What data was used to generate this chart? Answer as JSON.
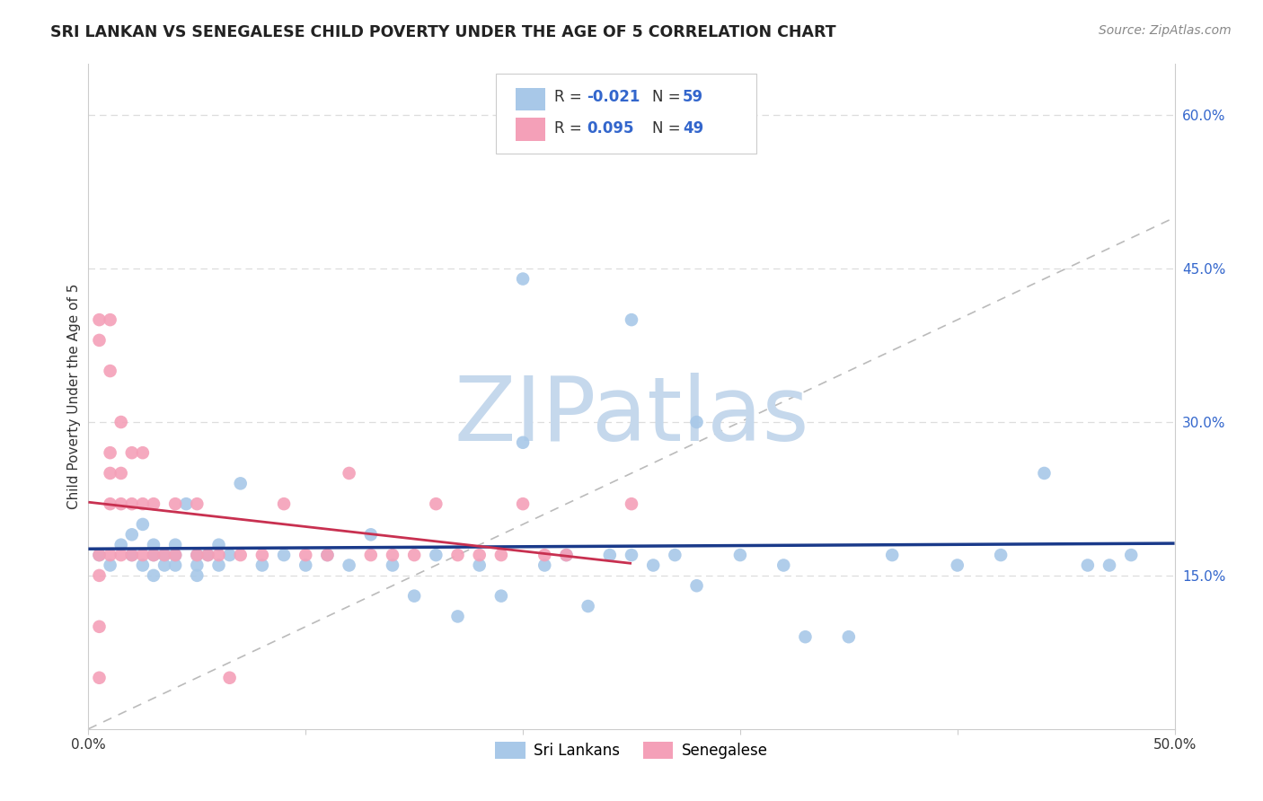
{
  "title": "SRI LANKAN VS SENEGALESE CHILD POVERTY UNDER THE AGE OF 5 CORRELATION CHART",
  "source": "Source: ZipAtlas.com",
  "ylabel": "Child Poverty Under the Age of 5",
  "xlim": [
    0.0,
    0.5
  ],
  "ylim": [
    0.0,
    0.65
  ],
  "sri_lankan_color": "#A8C8E8",
  "senegalese_color": "#F4A0B8",
  "sri_lankan_line_color": "#1A3A8A",
  "senegalese_line_color": "#C83050",
  "diagonal_line_color": "#BBBBBB",
  "watermark_zip_color": "#C5D8EC",
  "watermark_atlas_color": "#C5D8EC",
  "legend_sri_r": "-0.021",
  "legend_sri_n": "59",
  "legend_sen_r": "0.095",
  "legend_sen_n": "49",
  "grid_color": "#DDDDDD",
  "sri_x": [
    0.005,
    0.01,
    0.015,
    0.02,
    0.02,
    0.025,
    0.025,
    0.03,
    0.03,
    0.03,
    0.035,
    0.035,
    0.04,
    0.04,
    0.04,
    0.045,
    0.05,
    0.05,
    0.05,
    0.055,
    0.06,
    0.06,
    0.065,
    0.07,
    0.08,
    0.09,
    0.1,
    0.11,
    0.12,
    0.13,
    0.14,
    0.15,
    0.16,
    0.17,
    0.18,
    0.19,
    0.2,
    0.21,
    0.22,
    0.23,
    0.24,
    0.25,
    0.26,
    0.27,
    0.28,
    0.3,
    0.32,
    0.33,
    0.35,
    0.37,
    0.4,
    0.42,
    0.44,
    0.46,
    0.47,
    0.48,
    0.2,
    0.25,
    0.28
  ],
  "sri_y": [
    0.17,
    0.16,
    0.18,
    0.17,
    0.19,
    0.16,
    0.2,
    0.17,
    0.15,
    0.18,
    0.16,
    0.17,
    0.16,
    0.18,
    0.17,
    0.22,
    0.16,
    0.17,
    0.15,
    0.17,
    0.16,
    0.18,
    0.17,
    0.24,
    0.16,
    0.17,
    0.16,
    0.17,
    0.16,
    0.19,
    0.16,
    0.13,
    0.17,
    0.11,
    0.16,
    0.13,
    0.28,
    0.16,
    0.17,
    0.12,
    0.17,
    0.17,
    0.16,
    0.17,
    0.14,
    0.17,
    0.16,
    0.09,
    0.09,
    0.17,
    0.16,
    0.17,
    0.25,
    0.16,
    0.16,
    0.17,
    0.44,
    0.4,
    0.3
  ],
  "sen_x": [
    0.005,
    0.005,
    0.005,
    0.005,
    0.005,
    0.005,
    0.01,
    0.01,
    0.01,
    0.01,
    0.01,
    0.01,
    0.015,
    0.015,
    0.015,
    0.015,
    0.02,
    0.02,
    0.02,
    0.025,
    0.025,
    0.025,
    0.03,
    0.03,
    0.035,
    0.04,
    0.04,
    0.05,
    0.05,
    0.055,
    0.06,
    0.065,
    0.07,
    0.08,
    0.09,
    0.1,
    0.11,
    0.12,
    0.13,
    0.14,
    0.15,
    0.16,
    0.17,
    0.18,
    0.19,
    0.2,
    0.21,
    0.22,
    0.25
  ],
  "sen_y": [
    0.38,
    0.4,
    0.17,
    0.15,
    0.1,
    0.05,
    0.4,
    0.35,
    0.27,
    0.25,
    0.22,
    0.17,
    0.3,
    0.25,
    0.22,
    0.17,
    0.27,
    0.22,
    0.17,
    0.27,
    0.22,
    0.17,
    0.22,
    0.17,
    0.17,
    0.22,
    0.17,
    0.22,
    0.17,
    0.17,
    0.17,
    0.05,
    0.17,
    0.17,
    0.22,
    0.17,
    0.17,
    0.25,
    0.17,
    0.17,
    0.17,
    0.22,
    0.17,
    0.17,
    0.17,
    0.22,
    0.17,
    0.17,
    0.22
  ]
}
